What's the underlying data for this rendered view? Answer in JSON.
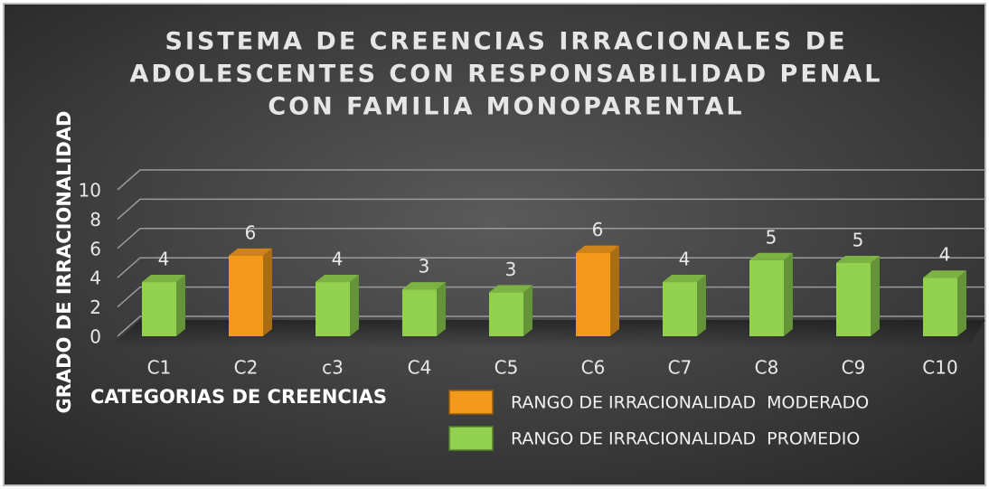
{
  "chart_data": {
    "type": "bar3d",
    "title": [
      "SISTEMA DE CREENCIAS IRRACIONALES DE",
      "ADOLESCENTES CON RESPONSABILIDAD PENAL",
      "CON FAMILIA MONOPARENTAL"
    ],
    "x_label": "CATEGORIAS DE CREENCIAS",
    "y_label": "GRADO DE IRRACIONALIDAD",
    "categories": [
      "C1",
      "C2",
      "c3",
      "C4",
      "C5",
      "C6",
      "C7",
      "C8",
      "C9",
      "C10"
    ],
    "series": [
      {
        "name": "RANGO DE IRRACIONALIDAD  MODERADO",
        "color": "#f39a1c",
        "values": [
          null,
          5.5,
          null,
          null,
          null,
          5.7,
          null,
          null,
          null,
          null
        ],
        "value_labels": [
          null,
          "6",
          null,
          null,
          null,
          "6",
          null,
          null,
          null,
          null
        ]
      },
      {
        "name": "RANGO DE IRRACIONALIDAD  PROMEDIO",
        "color": "#92d050",
        "values": [
          3.7,
          null,
          3.7,
          3.2,
          3.0,
          null,
          3.7,
          5.2,
          5.0,
          4.0
        ],
        "value_labels": [
          "4",
          null,
          "4",
          "3",
          "3",
          null,
          "4",
          "5",
          "5",
          "4"
        ]
      }
    ],
    "ylim": [
      0,
      10
    ],
    "yticks": [
      0,
      2,
      4,
      6,
      8,
      10
    ],
    "grid": true,
    "legend": "bottom"
  }
}
